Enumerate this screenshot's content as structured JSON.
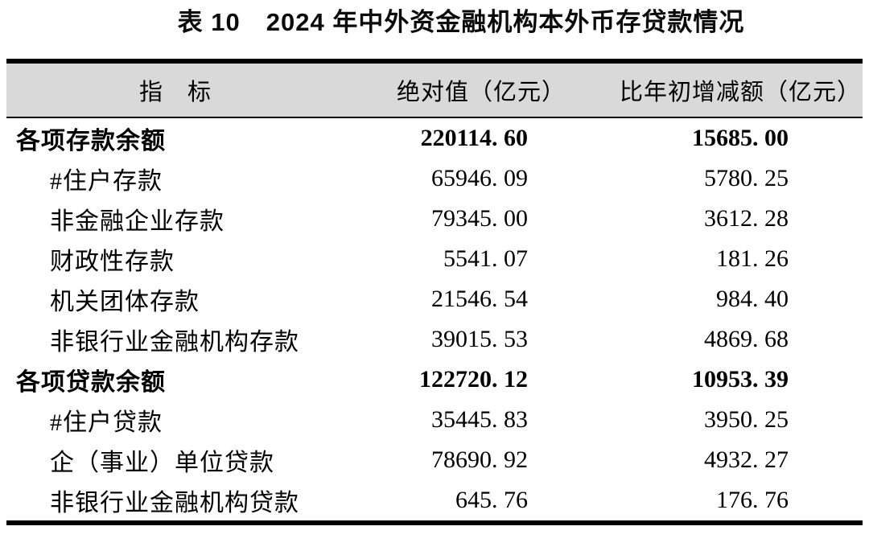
{
  "title": "表 10　2024 年中外资金融机构本外币存贷款情况",
  "table": {
    "headers": [
      "指　标",
      "绝对值（亿元）",
      "比年初增减额（亿元）"
    ],
    "unit": "亿元",
    "rows": [
      {
        "label": "各项存款余额",
        "abs": "220114.60",
        "change": "15685.00",
        "bold": true,
        "indent": 0
      },
      {
        "label": "#住户存款",
        "abs": "65946.09",
        "change": "5780.25",
        "bold": false,
        "indent": 1
      },
      {
        "label": "非金融企业存款",
        "abs": "79345.00",
        "change": "3612.28",
        "bold": false,
        "indent": 1
      },
      {
        "label": "财政性存款",
        "abs": "5541.07",
        "change": "181.26",
        "bold": false,
        "indent": 1
      },
      {
        "label": "机关团体存款",
        "abs": "21546.54",
        "change": "984.40",
        "bold": false,
        "indent": 1
      },
      {
        "label": "非银行业金融机构存款",
        "abs": "39015.53",
        "change": "4869.68",
        "bold": false,
        "indent": 1
      },
      {
        "label": "各项贷款余额",
        "abs": "122720.12",
        "change": "10953.39",
        "bold": true,
        "indent": 0
      },
      {
        "label": "#住户贷款",
        "abs": "35445.83",
        "change": "3950.25",
        "bold": false,
        "indent": 1
      },
      {
        "label": "企（事业）单位贷款",
        "abs": "78690.92",
        "change": "4932.27",
        "bold": false,
        "indent": 1
      },
      {
        "label": "非银行业金融机构贷款",
        "abs": "645.76",
        "change": "176.76",
        "bold": false,
        "indent": 1
      }
    ],
    "style": {
      "header_bg": "#d9d9d9",
      "rule_color": "#000000",
      "text_color": "#000000"
    }
  }
}
